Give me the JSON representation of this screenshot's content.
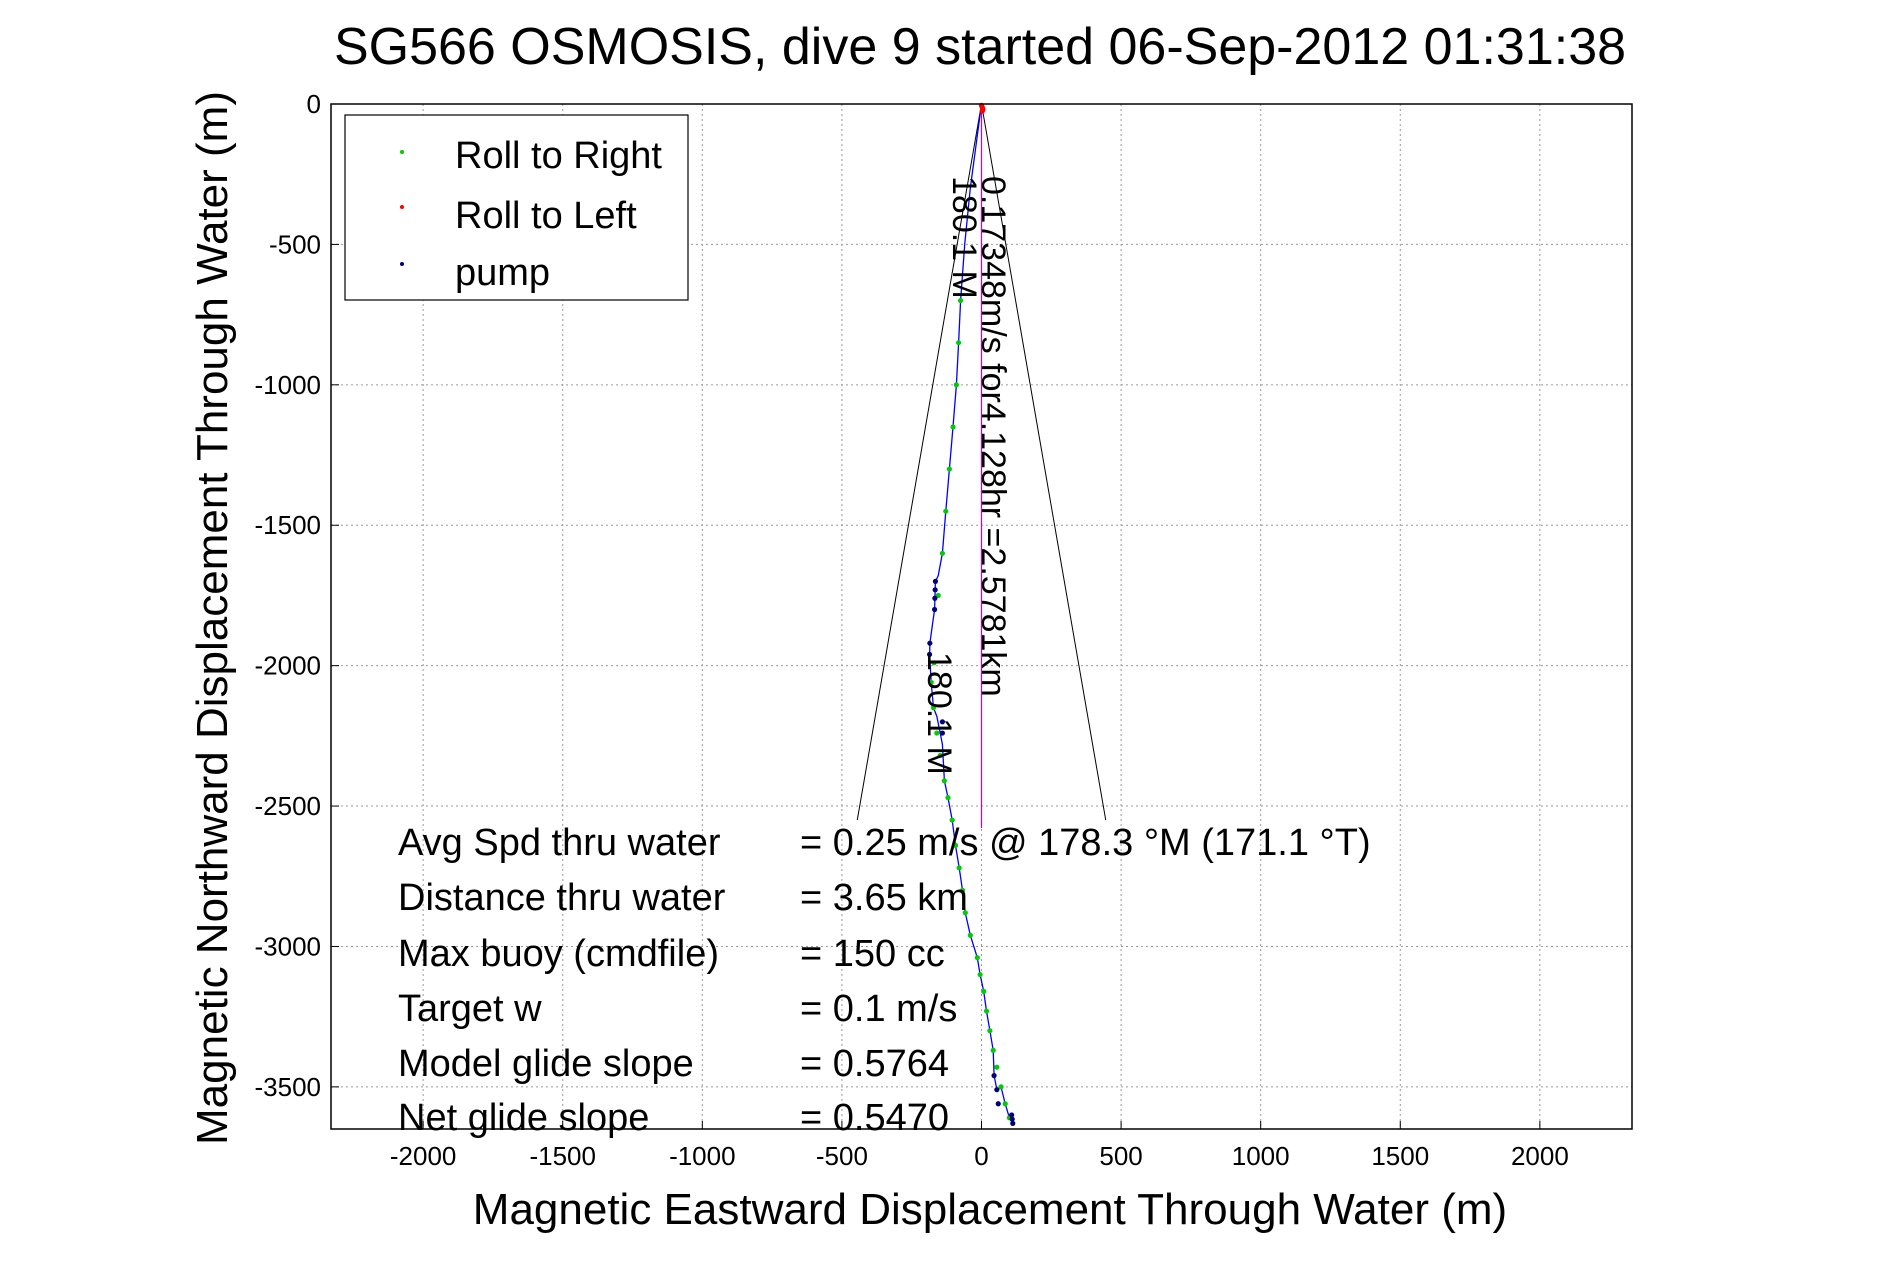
{
  "chart_data": {
    "type": "scatter",
    "title": "SG566 OSMOSIS, dive 9 started 06-Sep-2012 01:31:38",
    "xlabel": "Magnetic Eastward Displacement Through Water (m)",
    "ylabel": "Magnetic Northward Displacement Through Water (m)",
    "xlim": [
      -2330,
      2330
    ],
    "ylim": [
      -3650,
      0
    ],
    "xticks": [
      -2000,
      -1500,
      -1000,
      -500,
      0,
      500,
      1000,
      1500,
      2000
    ],
    "yticks": [
      0,
      -500,
      -1000,
      -1500,
      -2000,
      -2500,
      -3000,
      -3500
    ],
    "grid": true,
    "legend": {
      "position": "top-left",
      "entries": [
        "Roll to Right",
        "Roll to Left",
        "pump"
      ]
    },
    "series": [
      {
        "name": "Roll to Right",
        "color": "#00cc00",
        "marker": "dot",
        "x": [
          -75,
          -82,
          -90,
          -102,
          -115,
          -128,
          -140,
          -155,
          -170,
          -180,
          -172,
          -160,
          -148,
          -133,
          -120,
          -105,
          -93,
          -80,
          -68,
          -58,
          -40,
          -15,
          -5,
          8,
          18,
          30,
          42,
          55,
          70,
          85,
          100
        ],
        "y": [
          -700,
          -850,
          -1000,
          -1150,
          -1300,
          -1450,
          -1600,
          -1750,
          -1990,
          -2060,
          -2150,
          -2240,
          -2320,
          -2410,
          -2470,
          -2550,
          -2640,
          -2720,
          -2800,
          -2880,
          -2960,
          -3040,
          -3100,
          -3160,
          -3230,
          -3300,
          -3370,
          -3430,
          -3500,
          -3560,
          -3610
        ]
      },
      {
        "name": "Roll to Left",
        "color": "#ff0000",
        "marker": "dot",
        "x": [
          0,
          2,
          4,
          5,
          3
        ],
        "y": [
          -5,
          -10,
          -15,
          -20,
          -25
        ]
      },
      {
        "name": "pump",
        "color": "#00007a",
        "marker": "dot",
        "x": [
          -165,
          -166,
          -167,
          -168,
          -185,
          -186,
          -140,
          -140,
          45,
          55,
          60,
          108,
          110,
          112
        ],
        "y": [
          -1700,
          -1730,
          -1760,
          -1800,
          -1920,
          -1960,
          -2200,
          -2240,
          -3460,
          -3510,
          -3560,
          -3600,
          -3615,
          -3630
        ]
      },
      {
        "name": "",
        "color": "#0000ff",
        "marker": "line",
        "x": [
          0,
          -40,
          -60,
          -75,
          -82,
          -90,
          -102,
          -115,
          -128,
          -140,
          -155,
          -165,
          -168,
          -175,
          -185,
          -186,
          -180,
          -172,
          -160,
          -148,
          -140,
          -133,
          -120,
          -105,
          -93,
          -80,
          -68,
          -58,
          -40,
          -15,
          -5,
          8,
          18,
          30,
          42,
          45,
          55,
          70,
          85,
          100,
          110,
          112
        ],
        "y": [
          0,
          -300,
          -500,
          -700,
          -850,
          -1000,
          -1150,
          -1300,
          -1450,
          -1600,
          -1680,
          -1700,
          -1800,
          -1850,
          -1920,
          -1960,
          -2060,
          -2150,
          -2180,
          -2240,
          -2280,
          -2410,
          -2470,
          -2550,
          -2640,
          -2720,
          -2800,
          -2880,
          -2960,
          -3040,
          -3100,
          -3160,
          -3230,
          -3300,
          -3370,
          -3460,
          -3510,
          -3500,
          -3560,
          -3610,
          -3615,
          -3630
        ]
      }
    ],
    "annotations": {
      "cone_lines": [
        {
          "x": [
            0,
            -445
          ],
          "y": [
            0,
            -2550
          ]
        },
        {
          "x": [
            0,
            445
          ],
          "y": [
            0,
            -2550
          ]
        }
      ],
      "current_line": {
        "x": [
          0,
          0
        ],
        "y": [
          0,
          -2578
        ]
      },
      "current_label": "0.17348m/s for4.128hr =2.5781km",
      "heading_labels": [
        "180.1 M",
        "180.1 M"
      ],
      "stats": [
        {
          "label": "Avg Spd thru water",
          "value": "=  0.25 m/s @ 178.3 °M (171.1 °T)"
        },
        {
          "label": "Distance thru water",
          "value": "=  3.65 km"
        },
        {
          "label": "Max buoy (cmdfile)",
          "value": "= 150 cc"
        },
        {
          "label": "Target w",
          "value": "= 0.1 m/s"
        },
        {
          "label": "Model glide slope",
          "value": "= 0.5764"
        },
        {
          "label": "Net glide slope",
          "value": "= 0.5470"
        }
      ]
    }
  }
}
